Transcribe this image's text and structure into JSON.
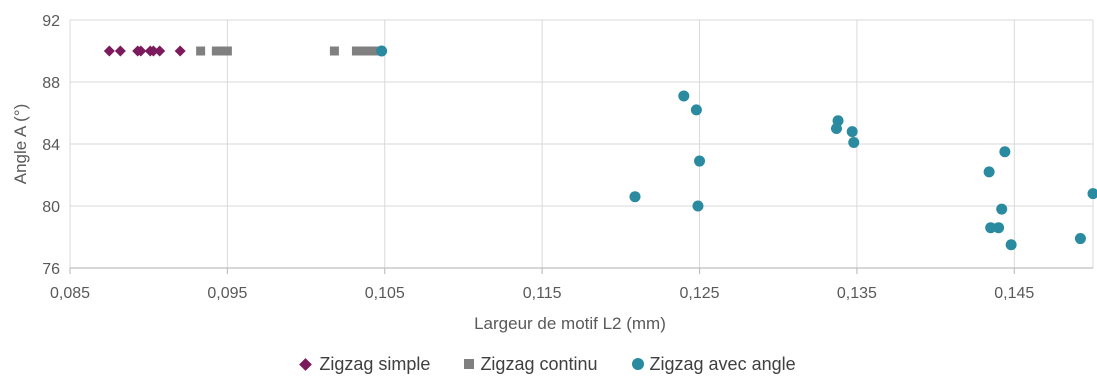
{
  "chart_data": {
    "type": "scatter",
    "xlabel": "Largeur de motif L2 (mm)",
    "ylabel": "Angle A (°)",
    "xlim": [
      0.085,
      0.15
    ],
    "ylim": [
      76,
      92
    ],
    "x_ticks": [
      0.085,
      0.095,
      0.105,
      0.115,
      0.125,
      0.135,
      0.145
    ],
    "x_tick_labels": [
      "0,085",
      "0,095",
      "0,105",
      "0,115",
      "0,125",
      "0,135",
      "0,145"
    ],
    "y_ticks": [
      76,
      80,
      84,
      88,
      92
    ],
    "y_tick_labels": [
      "76",
      "80",
      "84",
      "88",
      "92"
    ],
    "grid": "vertical and horizontal",
    "legend_position": "bottom",
    "series": [
      {
        "name": "Zigzag simple",
        "marker": "diamond",
        "color": "#7b1a5c",
        "points": [
          [
            0.0875,
            90
          ],
          [
            0.0882,
            90
          ],
          [
            0.0893,
            90
          ],
          [
            0.0895,
            90
          ],
          [
            0.0901,
            90
          ],
          [
            0.0903,
            90
          ],
          [
            0.0907,
            90
          ],
          [
            0.092,
            90
          ]
        ]
      },
      {
        "name": "Zigzag continu",
        "marker": "square",
        "color": "#808080",
        "points": [
          [
            0.0933,
            90
          ],
          [
            0.0943,
            90
          ],
          [
            0.0946,
            90
          ],
          [
            0.095,
            90
          ],
          [
            0.1018,
            90
          ],
          [
            0.1032,
            90
          ],
          [
            0.1037,
            90
          ],
          [
            0.104,
            90
          ],
          [
            0.1043,
            90
          ]
        ]
      },
      {
        "name": "Zigzag avec angle",
        "marker": "circle",
        "color": "#2a8aa0",
        "points": [
          [
            0.1048,
            90
          ],
          [
            0.1209,
            80.6
          ],
          [
            0.124,
            87.1
          ],
          [
            0.1248,
            86.2
          ],
          [
            0.125,
            82.9
          ],
          [
            0.1249,
            80.0
          ],
          [
            0.1338,
            85.5
          ],
          [
            0.1337,
            85.0
          ],
          [
            0.1347,
            84.8
          ],
          [
            0.1348,
            84.1
          ],
          [
            0.1434,
            82.2
          ],
          [
            0.1435,
            78.6
          ],
          [
            0.144,
            78.6
          ],
          [
            0.1442,
            79.8
          ],
          [
            0.1444,
            83.5
          ],
          [
            0.1448,
            77.5
          ],
          [
            0.1492,
            77.9
          ],
          [
            0.15,
            80.8
          ]
        ]
      }
    ]
  }
}
